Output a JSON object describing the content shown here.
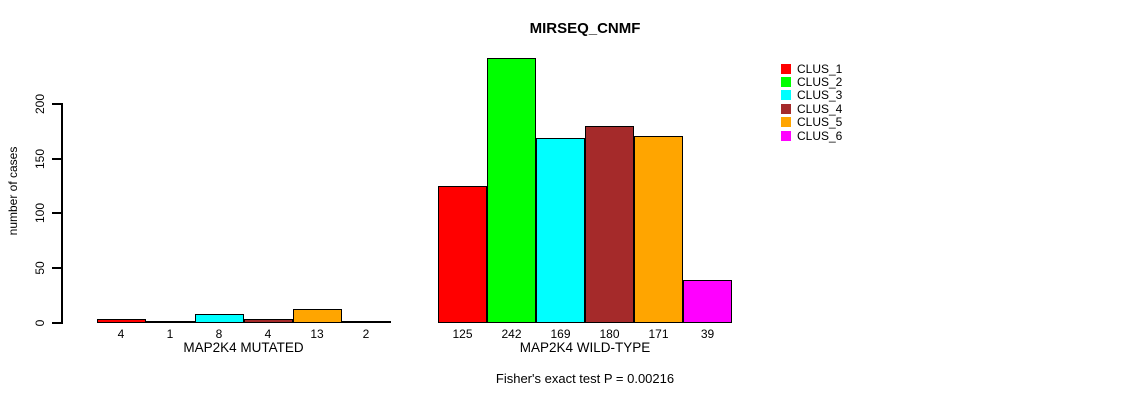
{
  "chart_data": {
    "type": "bar",
    "title": "MIRSEQ_CNMF",
    "ylabel": "number of cases",
    "ylim": [
      0,
      242
    ],
    "yticks": [
      0,
      50,
      100,
      150,
      200
    ],
    "grid": false,
    "legend_position": "right",
    "categories": [
      "CLUS_1",
      "CLUS_2",
      "CLUS_3",
      "CLUS_4",
      "CLUS_5",
      "CLUS_6"
    ],
    "colors": [
      "#FF0000",
      "#00FF00",
      "#00FFFF",
      "#A52A2A",
      "#FFA500",
      "#FF00FF"
    ],
    "groups": [
      {
        "label": "MAP2K4 MUTATED",
        "values": [
          4,
          1,
          8,
          4,
          13,
          2
        ]
      },
      {
        "label": "MAP2K4 WILD-TYPE",
        "values": [
          125,
          242,
          169,
          180,
          171,
          39
        ]
      }
    ],
    "annotation": "Fisher's exact test P = 0.00216"
  }
}
